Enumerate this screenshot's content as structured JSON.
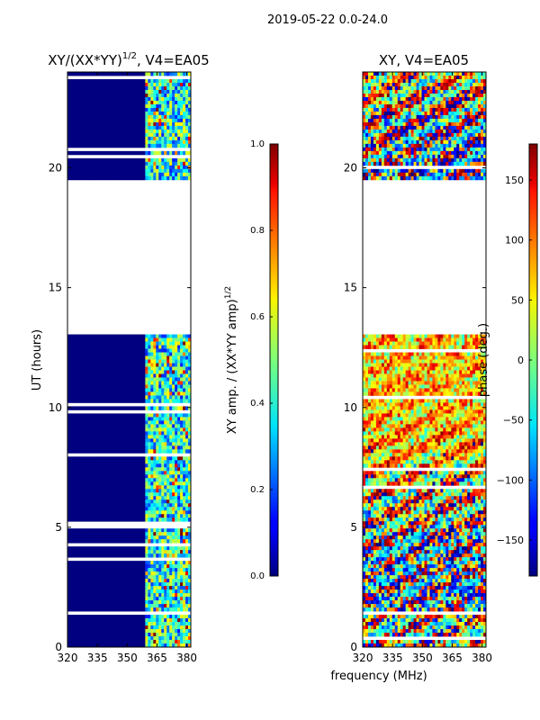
{
  "figure": {
    "suptitle": "2019-05-22 0.0-24.0",
    "xlabel": "frequency (MHz)"
  },
  "chart_data": [
    {
      "type": "heatmap",
      "title_main": "XY/(XX*YY)",
      "title_exp": "1/2",
      "title_tail": ", V4=EA05",
      "ylabel": "UT (hours)",
      "xlim": [
        320,
        382
      ],
      "ylim": [
        0,
        24
      ],
      "xticks": [
        320,
        335,
        350,
        365,
        380
      ],
      "yticks": [
        0,
        5,
        10,
        15,
        20
      ],
      "data_gap": [
        19.35,
        13.15
      ],
      "colorbar": {
        "label_main": "XY amp. / (XX*YY amp)",
        "label_exp": "1/2",
        "colormap": "jet",
        "range": [
          0.0,
          1.0
        ],
        "ticks": [
          "0.0",
          "0.2",
          "0.4",
          "0.6",
          "0.8",
          "1.0"
        ]
      }
    },
    {
      "type": "heatmap",
      "title": "XY, V4=EA05",
      "xlim": [
        320,
        382
      ],
      "ylim": [
        0,
        24
      ],
      "xticks": [
        320,
        335,
        350,
        365,
        380
      ],
      "yticks": [
        0,
        5,
        10,
        15,
        20
      ],
      "data_gap": [
        19.35,
        13.15
      ],
      "colorbar": {
        "label": "phase (deg.)",
        "colormap": "jet",
        "range": [
          -180,
          180
        ],
        "ticks": [
          "150",
          "100",
          "50",
          "0",
          "−50",
          "−100",
          "−150"
        ]
      }
    }
  ]
}
